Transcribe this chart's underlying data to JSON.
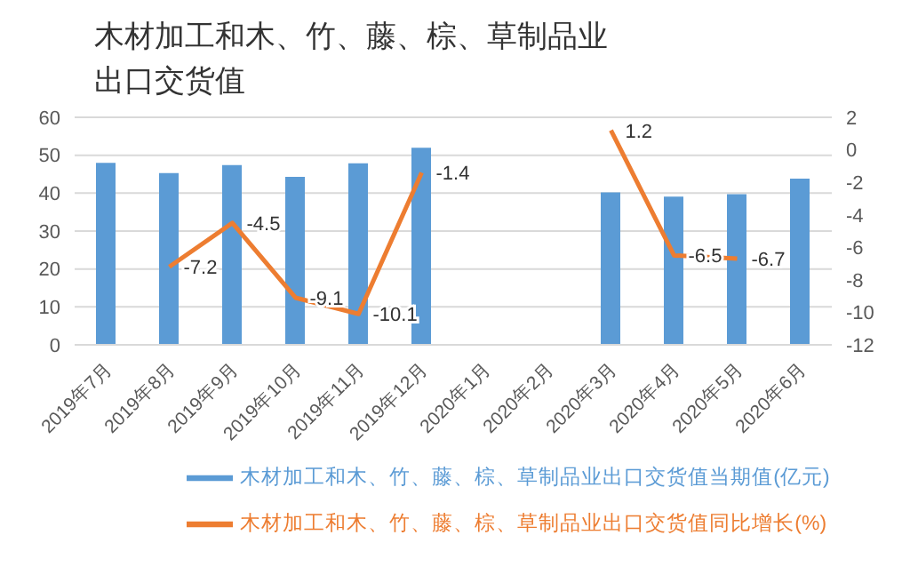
{
  "chart_data": {
    "type": "bar",
    "title": "木材加工和木、竹、藤、棕、草制品业出口交货值",
    "categories": [
      "2019年7月",
      "2019年8月",
      "2019年9月",
      "2019年10月",
      "2019年11月",
      "2019年12月",
      "2020年1月",
      "2020年2月",
      "2020年3月",
      "2020年4月",
      "2020年5月",
      "2020年6月"
    ],
    "series": [
      {
        "name": "木材加工和木、竹、藤、棕、草制品业出口交货值当期值(亿元)",
        "color": "#5b9bd5",
        "values": [
          48,
          45.3,
          47.4,
          44.3,
          47.9,
          52,
          null,
          null,
          40.2,
          39.1,
          39.7,
          43.8
        ]
      },
      {
        "name": "木材加工和木、竹、藤、棕、草制品业出口交货值同比增长(%)",
        "type": "line",
        "axis": "y2",
        "color": "#ed7d31",
        "values": [
          null,
          -7.2,
          -4.5,
          -9.1,
          -10.1,
          -1.4,
          null,
          null,
          1.2,
          -6.5,
          -6.7,
          null
        ],
        "value_labels": [
          null,
          "-7.2",
          "-4.5",
          "-9.1",
          "-10.1",
          "-1.4",
          null,
          null,
          "1.2",
          "-6.5",
          "-6.7",
          null
        ]
      }
    ],
    "ylim": [
      0,
      60
    ],
    "yticks": [
      0,
      10,
      20,
      30,
      40,
      50,
      60
    ],
    "y2lim": [
      -12,
      2
    ],
    "y2ticks": [
      -12,
      -10,
      -8,
      -6,
      -4,
      -2,
      0,
      2
    ],
    "grid": "y",
    "legend": "bottom",
    "marker": "none"
  }
}
